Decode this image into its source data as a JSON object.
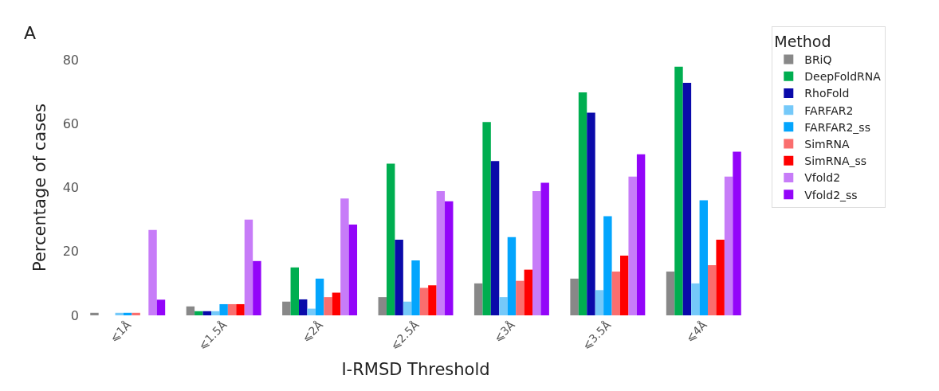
{
  "chart_data": {
    "type": "bar",
    "title": "A",
    "xlabel": "I-RMSD Threshold",
    "ylabel": "Percentage of cases",
    "legend_title": "Method",
    "legend": "right",
    "categories": [
      "⩽1Å",
      "⩽1.5Å",
      "⩽2Å",
      "⩽2.5Å",
      "⩽3Å",
      "⩽3.5Å",
      "⩽4Å"
    ],
    "ylim": [
      0,
      80
    ],
    "yticks": [
      0,
      20,
      40,
      60,
      80
    ],
    "series": [
      {
        "name": "BRiQ",
        "color": "#888888",
        "values": [
          0.8,
          2.8,
          4.3,
          5.7,
          10,
          11.5,
          13.7
        ]
      },
      {
        "name": "DeepFoldRNA",
        "color": "#00ae50",
        "values": [
          0,
          1.3,
          15,
          47.5,
          60.5,
          69.8,
          77.8
        ]
      },
      {
        "name": "RhoFold",
        "color": "#0a0aaa",
        "values": [
          0,
          1.3,
          5,
          23.7,
          48.3,
          63.4,
          72.8
        ]
      },
      {
        "name": "FARFAR2",
        "color": "#75c9f9",
        "values": [
          0.8,
          1.3,
          2.1,
          4.3,
          5.7,
          7.9,
          10
        ]
      },
      {
        "name": "FARFAR2_ss",
        "color": "#03a5fd",
        "values": [
          0.8,
          3.5,
          11.5,
          17.2,
          24.5,
          31,
          36
        ]
      },
      {
        "name": "SimRNA",
        "color": "#fa6e6e",
        "values": [
          0.8,
          3.5,
          5.7,
          8.6,
          10.8,
          13.7,
          15.7
        ]
      },
      {
        "name": "SimRNA_ss",
        "color": "#ff0000",
        "values": [
          0,
          3.5,
          7.1,
          9.4,
          14.3,
          18.7,
          23.7
        ]
      },
      {
        "name": "Vfold2",
        "color": "#c77cf8",
        "values": [
          26.7,
          30,
          36.6,
          38.9,
          38.9,
          43.4,
          43.4
        ]
      },
      {
        "name": "Vfold2_ss",
        "color": "#9305f9",
        "values": [
          4.9,
          17,
          28.4,
          35.7,
          41.5,
          50.4,
          51.2
        ]
      }
    ]
  }
}
